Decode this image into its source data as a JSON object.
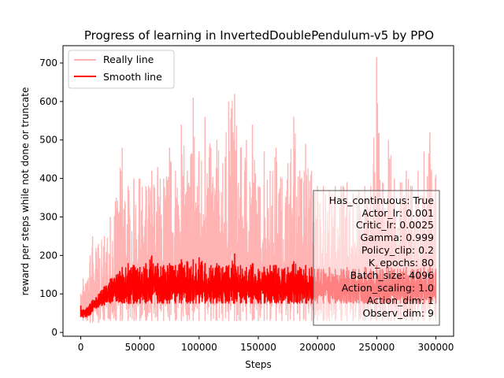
{
  "chart_data": {
    "type": "line",
    "title": "Progress of learning in InvertedDoublePendulum-v5 by PPO",
    "xlabel": "Steps",
    "ylabel": "reward per steps while not done or truncate",
    "xlim": [
      -15000,
      315000
    ],
    "ylim": [
      -10,
      745
    ],
    "xticks": [
      0,
      50000,
      100000,
      150000,
      200000,
      250000,
      300000
    ],
    "yticks": [
      0,
      100,
      200,
      300,
      400,
      500,
      600,
      700
    ],
    "grid": false,
    "legend": {
      "placement": "upper-left",
      "entries": [
        {
          "label": "Really line",
          "color": "#ffb3b3"
        },
        {
          "label": "Smooth line",
          "color": "#ff0000"
        }
      ]
    },
    "series": [
      {
        "name": "Really line",
        "color": "#ffb3b3",
        "x": [
          0,
          2000,
          5000,
          8000,
          10000,
          15000,
          20000,
          25000,
          30000,
          35000,
          40000,
          45000,
          50000,
          55000,
          60000,
          65000,
          70000,
          75000,
          80000,
          85000,
          90000,
          95000,
          100000,
          105000,
          110000,
          115000,
          120000,
          125000,
          130000,
          135000,
          140000,
          145000,
          150000,
          155000,
          160000,
          165000,
          170000,
          175000,
          180000,
          185000,
          190000,
          195000,
          200000,
          205000,
          210000,
          215000,
          220000,
          225000,
          230000,
          235000,
          240000,
          245000,
          250000,
          255000,
          260000,
          265000,
          270000,
          275000,
          280000,
          285000,
          290000,
          295000,
          300000
        ],
        "upper": [
          100,
          140,
          130,
          200,
          250,
          230,
          250,
          300,
          350,
          480,
          380,
          400,
          400,
          380,
          420,
          430,
          400,
          480,
          420,
          540,
          420,
          610,
          470,
          560,
          480,
          500,
          440,
          600,
          620,
          480,
          500,
          540,
          380,
          470,
          420,
          480,
          400,
          440,
          560,
          420,
          490,
          420,
          380,
          380,
          370,
          380,
          380,
          390,
          360,
          370,
          380,
          380,
          715,
          390,
          500,
          400,
          390,
          420,
          380,
          420,
          470,
          520,
          410
        ],
        "lower": [
          40,
          30,
          30,
          25,
          25,
          25,
          30,
          30,
          30,
          30,
          30,
          30,
          30,
          30,
          30,
          30,
          30,
          30,
          30,
          30,
          30,
          30,
          30,
          30,
          30,
          30,
          30,
          30,
          30,
          30,
          30,
          30,
          30,
          30,
          30,
          30,
          30,
          30,
          30,
          30,
          30,
          30,
          30,
          30,
          30,
          30,
          30,
          30,
          30,
          30,
          30,
          30,
          30,
          30,
          30,
          30,
          30,
          30,
          30,
          30,
          30,
          30,
          30
        ]
      },
      {
        "name": "Smooth line",
        "color": "#ff0000",
        "x": [
          0,
          2000,
          5000,
          8000,
          10000,
          15000,
          20000,
          25000,
          30000,
          35000,
          40000,
          45000,
          50000,
          55000,
          60000,
          65000,
          70000,
          75000,
          80000,
          85000,
          90000,
          95000,
          100000,
          105000,
          110000,
          115000,
          120000,
          125000,
          130000,
          135000,
          140000,
          145000,
          150000,
          155000,
          160000,
          165000,
          170000,
          175000,
          180000,
          185000,
          190000,
          195000,
          200000,
          205000,
          210000,
          215000,
          220000,
          225000,
          230000,
          235000,
          240000,
          245000,
          250000,
          255000,
          260000,
          265000,
          270000,
          275000,
          280000,
          285000,
          290000,
          295000,
          300000
        ],
        "upper": [
          70,
          60,
          65,
          75,
          85,
          100,
          120,
          140,
          150,
          170,
          180,
          175,
          170,
          180,
          200,
          180,
          175,
          180,
          175,
          190,
          185,
          190,
          195,
          180,
          175,
          180,
          170,
          175,
          205,
          175,
          170,
          180,
          165,
          170,
          175,
          175,
          165,
          170,
          185,
          170,
          175,
          170,
          165,
          165,
          170,
          165,
          165,
          170,
          165,
          165,
          170,
          165,
          175,
          165,
          170,
          165,
          165,
          170,
          165,
          165,
          170,
          175,
          165
        ],
        "lower": [
          40,
          38,
          40,
          45,
          55,
          65,
          70,
          75,
          80,
          75,
          75,
          75,
          75,
          75,
          75,
          75,
          75,
          75,
          75,
          75,
          75,
          75,
          75,
          75,
          75,
          75,
          75,
          75,
          75,
          75,
          75,
          75,
          75,
          75,
          75,
          75,
          75,
          75,
          75,
          75,
          75,
          75,
          75,
          75,
          75,
          75,
          75,
          75,
          75,
          75,
          75,
          75,
          75,
          75,
          75,
          75,
          75,
          75,
          75,
          75,
          75,
          75,
          75
        ]
      }
    ],
    "annotations": [
      "Has_continuous: True",
      "Actor_lr: 0.001",
      "Critic_lr: 0.0025",
      "Gamma: 0.999",
      "Policy_clip: 0.2",
      "K_epochs: 80",
      "Batch_size: 4096",
      "Action_scaling: 1.0",
      "Action_dim: 1",
      "Observ_dim: 9"
    ]
  }
}
